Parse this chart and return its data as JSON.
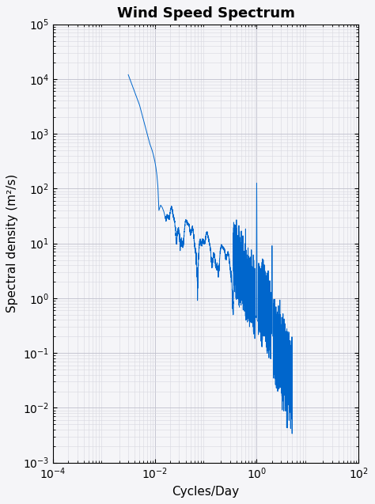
{
  "title": "Wind Speed Spectrum",
  "xlabel": "Cycles/Day",
  "ylabel": "Spectral density (m²/s)",
  "xlim": [
    0.0001,
    100.0
  ],
  "ylim": [
    0.001,
    100000.0
  ],
  "line_color": "#0066CC",
  "background_color": "#f5f5f8",
  "grid_minor_color": "#d8d8e0",
  "grid_major_color": "#c0c0cc",
  "title_fontsize": 13,
  "axis_fontsize": 11,
  "tick_labelsize": 10
}
